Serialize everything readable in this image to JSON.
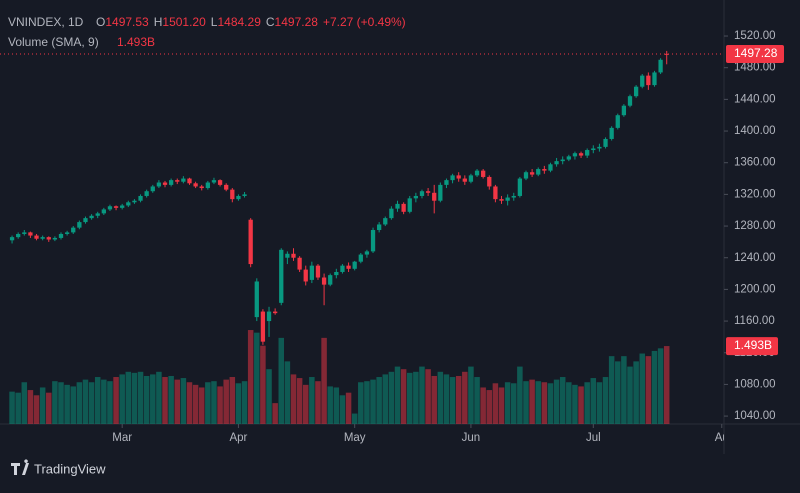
{
  "chart_data": {
    "type": "candlestick",
    "symbol": "VNINDEX, 1D",
    "ohlc_letters": [
      "O",
      "H",
      "L",
      "C"
    ],
    "last_labels": [
      "1497.53",
      "1501.20",
      "1484.29",
      "1497.28"
    ],
    "change": "+7.27 (+0.49%)",
    "volume_title": "Volume (SMA, 9)",
    "volume_label": "1.493B",
    "up_color": "#089981",
    "down_color": "#f23645",
    "ylim": [
      1030,
      1565.5
    ],
    "yticks": [
      {
        "value": 1040,
        "label": "1040.00"
      },
      {
        "value": 1080,
        "label": "1080.00"
      },
      {
        "value": 1120,
        "label": "1120.00"
      },
      {
        "value": 1160,
        "label": "1160.00"
      },
      {
        "value": 1200,
        "label": "1200.00"
      },
      {
        "value": 1240,
        "label": "1240.00"
      },
      {
        "value": 1280,
        "label": "1280.00"
      },
      {
        "value": 1320,
        "label": "1320.00"
      },
      {
        "value": 1360,
        "label": "1360.00"
      },
      {
        "value": 1400,
        "label": "1400.00"
      },
      {
        "value": 1440,
        "label": "1440.00"
      },
      {
        "value": 1480,
        "label": "1480.00"
      },
      {
        "value": 1520,
        "label": "1520.00"
      }
    ],
    "xlim": [
      -0.5,
      116.2
    ],
    "xticks": [
      {
        "value": 18,
        "label": "Mar"
      },
      {
        "value": 37,
        "label": "Apr"
      },
      {
        "value": 56,
        "label": "May"
      },
      {
        "value": 75,
        "label": "Jun"
      },
      {
        "value": 95,
        "label": "Jul"
      },
      {
        "value": 116,
        "label": "Au"
      }
    ],
    "ohlc": [
      [
        1262,
        1268,
        1258,
        1266
      ],
      [
        1266,
        1272,
        1264,
        1270
      ],
      [
        1270,
        1275,
        1268,
        1272
      ],
      [
        1272,
        1273,
        1265,
        1268
      ],
      [
        1268,
        1270,
        1262,
        1264
      ],
      [
        1264,
        1268,
        1262,
        1266
      ],
      [
        1266,
        1267,
        1260,
        1263
      ],
      [
        1263,
        1267,
        1261,
        1265
      ],
      [
        1265,
        1272,
        1263,
        1270
      ],
      [
        1270,
        1274,
        1268,
        1272
      ],
      [
        1272,
        1280,
        1270,
        1278
      ],
      [
        1278,
        1287,
        1276,
        1285
      ],
      [
        1285,
        1292,
        1283,
        1290
      ],
      [
        1290,
        1295,
        1288,
        1293
      ],
      [
        1293,
        1298,
        1290,
        1296
      ],
      [
        1296,
        1303,
        1294,
        1301
      ],
      [
        1301,
        1307,
        1299,
        1305
      ],
      [
        1305,
        1306,
        1300,
        1303
      ],
      [
        1303,
        1308,
        1301,
        1306
      ],
      [
        1306,
        1312,
        1304,
        1310
      ],
      [
        1310,
        1314,
        1308,
        1312
      ],
      [
        1312,
        1320,
        1310,
        1318
      ],
      [
        1318,
        1326,
        1316,
        1324
      ],
      [
        1324,
        1332,
        1322,
        1330
      ],
      [
        1330,
        1338,
        1328,
        1335
      ],
      [
        1335,
        1337,
        1329,
        1332
      ],
      [
        1332,
        1340,
        1330,
        1338
      ],
      [
        1338,
        1340,
        1333,
        1336
      ],
      [
        1336,
        1343,
        1334,
        1340
      ],
      [
        1340,
        1341,
        1332,
        1334
      ],
      [
        1334,
        1336,
        1328,
        1330
      ],
      [
        1330,
        1332,
        1325,
        1328
      ],
      [
        1328,
        1337,
        1326,
        1335
      ],
      [
        1335,
        1341,
        1333,
        1338
      ],
      [
        1338,
        1339,
        1330,
        1332
      ],
      [
        1332,
        1334,
        1324,
        1326
      ],
      [
        1326,
        1328,
        1310,
        1314
      ],
      [
        1314,
        1320,
        1312,
        1318
      ],
      [
        1318,
        1323,
        1316,
        1320
      ],
      [
        1288,
        1290,
        1228,
        1232
      ],
      [
        1165,
        1214,
        1160,
        1210
      ],
      [
        1172,
        1175,
        1130,
        1134
      ],
      [
        1160,
        1178,
        1140,
        1172
      ],
      [
        1172,
        1176,
        1168,
        1170
      ],
      [
        1183,
        1252,
        1180,
        1250
      ],
      [
        1240,
        1248,
        1232,
        1245
      ],
      [
        1245,
        1252,
        1236,
        1240
      ],
      [
        1240,
        1242,
        1222,
        1225
      ],
      [
        1225,
        1230,
        1205,
        1210
      ],
      [
        1212,
        1235,
        1208,
        1230
      ],
      [
        1230,
        1232,
        1212,
        1215
      ],
      [
        1215,
        1220,
        1180,
        1206
      ],
      [
        1206,
        1220,
        1204,
        1218
      ],
      [
        1218,
        1226,
        1214,
        1222
      ],
      [
        1222,
        1232,
        1220,
        1230
      ],
      [
        1230,
        1234,
        1222,
        1226
      ],
      [
        1226,
        1236,
        1224,
        1235
      ],
      [
        1235,
        1246,
        1233,
        1244
      ],
      [
        1244,
        1250,
        1240,
        1248
      ],
      [
        1248,
        1278,
        1246,
        1275
      ],
      [
        1275,
        1285,
        1272,
        1282
      ],
      [
        1282,
        1292,
        1280,
        1290
      ],
      [
        1290,
        1305,
        1288,
        1302
      ],
      [
        1302,
        1312,
        1298,
        1308
      ],
      [
        1308,
        1310,
        1295,
        1298
      ],
      [
        1298,
        1318,
        1296,
        1315
      ],
      [
        1315,
        1322,
        1310,
        1318
      ],
      [
        1318,
        1326,
        1315,
        1324
      ],
      [
        1324,
        1328,
        1318,
        1322
      ],
      [
        1322,
        1332,
        1296,
        1312
      ],
      [
        1312,
        1335,
        1310,
        1332
      ],
      [
        1332,
        1340,
        1328,
        1338
      ],
      [
        1338,
        1346,
        1334,
        1344
      ],
      [
        1344,
        1348,
        1336,
        1340
      ],
      [
        1340,
        1344,
        1332,
        1336
      ],
      [
        1336,
        1346,
        1334,
        1344
      ],
      [
        1344,
        1352,
        1342,
        1350
      ],
      [
        1350,
        1352,
        1340,
        1342
      ],
      [
        1342,
        1344,
        1326,
        1330
      ],
      [
        1330,
        1332,
        1310,
        1314
      ],
      [
        1314,
        1318,
        1308,
        1312
      ],
      [
        1312,
        1320,
        1306,
        1316
      ],
      [
        1316,
        1322,
        1312,
        1318
      ],
      [
        1318,
        1342,
        1316,
        1340
      ],
      [
        1340,
        1350,
        1338,
        1348
      ],
      [
        1348,
        1352,
        1342,
        1345
      ],
      [
        1345,
        1354,
        1343,
        1352
      ],
      [
        1352,
        1356,
        1346,
        1350
      ],
      [
        1350,
        1360,
        1348,
        1358
      ],
      [
        1358,
        1366,
        1355,
        1362
      ],
      [
        1362,
        1368,
        1358,
        1364
      ],
      [
        1364,
        1370,
        1362,
        1368
      ],
      [
        1368,
        1374,
        1364,
        1372
      ],
      [
        1372,
        1374,
        1366,
        1369
      ],
      [
        1369,
        1378,
        1366,
        1376
      ],
      [
        1376,
        1382,
        1372,
        1378
      ],
      [
        1378,
        1384,
        1374,
        1380
      ],
      [
        1380,
        1392,
        1378,
        1390
      ],
      [
        1390,
        1406,
        1388,
        1404
      ],
      [
        1404,
        1422,
        1402,
        1420
      ],
      [
        1420,
        1434,
        1418,
        1432
      ],
      [
        1432,
        1446,
        1430,
        1444
      ],
      [
        1444,
        1458,
        1442,
        1456
      ],
      [
        1456,
        1472,
        1454,
        1470
      ],
      [
        1470,
        1474,
        1452,
        1458
      ],
      [
        1458,
        1476,
        1456,
        1474
      ],
      [
        1474,
        1492,
        1472,
        1490.01
      ],
      [
        1497.53,
        1501.2,
        1484.29,
        1497.28
      ]
    ],
    "volumes": [
      0.62,
      0.6,
      0.8,
      0.65,
      0.55,
      0.7,
      0.6,
      0.82,
      0.8,
      0.75,
      0.72,
      0.8,
      0.85,
      0.8,
      0.9,
      0.85,
      0.82,
      0.9,
      0.95,
      1.0,
      0.98,
      1.0,
      0.92,
      0.95,
      1.0,
      0.9,
      0.92,
      0.85,
      0.88,
      0.8,
      0.75,
      0.7,
      0.8,
      0.82,
      0.72,
      0.85,
      0.9,
      0.78,
      0.82,
      1.8,
      1.75,
      1.5,
      1.05,
      0.4,
      1.65,
      1.2,
      0.95,
      0.88,
      0.75,
      0.9,
      0.82,
      1.65,
      0.72,
      0.7,
      0.55,
      0.6,
      0.2,
      0.8,
      0.82,
      0.85,
      0.9,
      0.95,
      1.0,
      1.1,
      1.05,
      0.98,
      1.0,
      1.1,
      1.05,
      0.92,
      1.0,
      0.95,
      0.9,
      0.92,
      1.0,
      1.1,
      0.9,
      0.7,
      0.65,
      0.78,
      0.7,
      0.8,
      0.78,
      1.1,
      0.82,
      0.85,
      0.82,
      0.8,
      0.78,
      0.85,
      0.9,
      0.8,
      0.75,
      0.72,
      0.8,
      0.88,
      0.8,
      0.9,
      1.3,
      1.2,
      1.3,
      1.1,
      1.2,
      1.35,
      1.3,
      1.4,
      1.45,
      1.493
    ],
    "brand": "TradingView"
  }
}
